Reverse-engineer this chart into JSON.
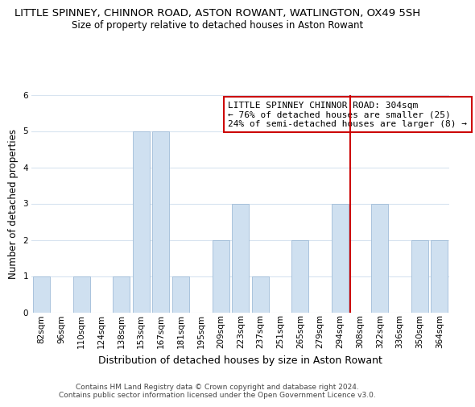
{
  "title": "LITTLE SPINNEY, CHINNOR ROAD, ASTON ROWANT, WATLINGTON, OX49 5SH",
  "subtitle": "Size of property relative to detached houses in Aston Rowant",
  "xlabel": "Distribution of detached houses by size in Aston Rowant",
  "ylabel": "Number of detached properties",
  "categories": [
    "82sqm",
    "96sqm",
    "110sqm",
    "124sqm",
    "138sqm",
    "153sqm",
    "167sqm",
    "181sqm",
    "195sqm",
    "209sqm",
    "223sqm",
    "237sqm",
    "251sqm",
    "265sqm",
    "279sqm",
    "294sqm",
    "308sqm",
    "322sqm",
    "336sqm",
    "350sqm",
    "364sqm"
  ],
  "values": [
    1,
    0,
    1,
    0,
    1,
    5,
    5,
    1,
    0,
    2,
    3,
    1,
    0,
    2,
    0,
    3,
    0,
    3,
    0,
    2,
    2
  ],
  "bar_color": "#cfe0f0",
  "bar_edge_color": "#a0bcd8",
  "ylim": [
    0,
    6
  ],
  "yticks": [
    0,
    1,
    2,
    3,
    4,
    5,
    6
  ],
  "grid_color": "#d8e4f0",
  "background_color": "#ffffff",
  "vline_x_index": 16,
  "vline_color": "#cc0000",
  "annotation_text": "LITTLE SPINNEY CHINNOR ROAD: 304sqm\n← 76% of detached houses are smaller (25)\n24% of semi-detached houses are larger (8) →",
  "annotation_box_color": "#ffffff",
  "annotation_box_edge_color": "#cc0000",
  "footer_line1": "Contains HM Land Registry data © Crown copyright and database right 2024.",
  "footer_line2": "Contains public sector information licensed under the Open Government Licence v3.0.",
  "title_fontsize": 9.5,
  "subtitle_fontsize": 8.5,
  "xlabel_fontsize": 9,
  "ylabel_fontsize": 8.5,
  "tick_fontsize": 7.5,
  "annotation_fontsize": 8,
  "footer_fontsize": 6.5
}
